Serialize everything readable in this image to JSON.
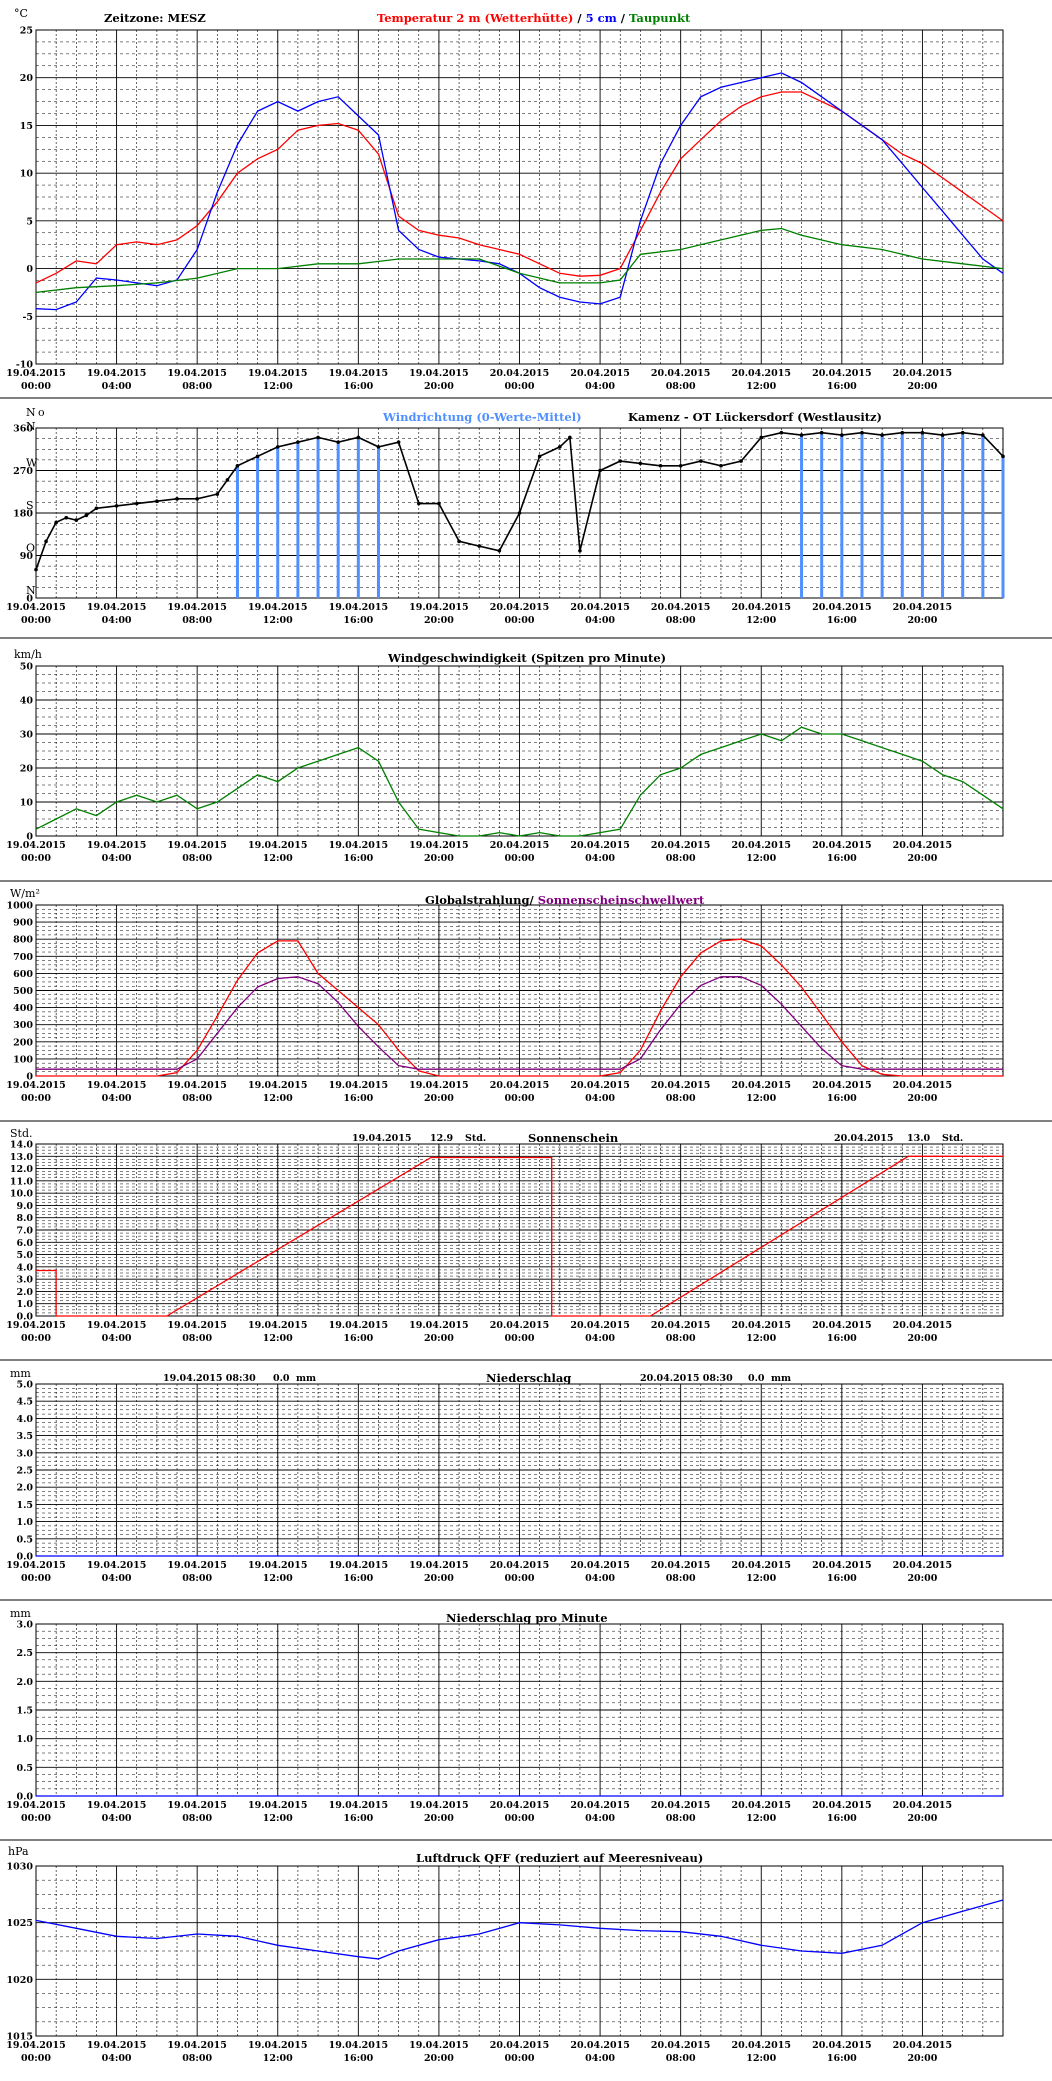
{
  "x_axis": {
    "labels": [
      [
        "19.04.2015",
        "00:00"
      ],
      [
        "19.04.2015",
        "04:00"
      ],
      [
        "19.04.2015",
        "08:00"
      ],
      [
        "19.04.2015",
        "12:00"
      ],
      [
        "19.04.2015",
        "16:00"
      ],
      [
        "19.04.2015",
        "20:00"
      ],
      [
        "20.04.2015",
        "00:00"
      ],
      [
        "20.04.2015",
        "04:00"
      ],
      [
        "20.04.2015",
        "08:00"
      ],
      [
        "20.04.2015",
        "12:00"
      ],
      [
        "20.04.2015",
        "16:00"
      ],
      [
        "20.04.2015",
        "20:00"
      ]
    ],
    "range_hours": [
      0,
      48
    ]
  },
  "colors": {
    "red": "#ff0000",
    "blue": "#0000ff",
    "green": "#008000",
    "black": "#000000",
    "lightblue": "#4f8fff",
    "purple": "#800080",
    "grid": "#000000"
  },
  "chart_data": [
    {
      "type": "line",
      "unit": "°C",
      "header": {
        "timezone": "Zeitzone: MESZ",
        "t2m": "Temperatur 2 m (Wetterhütte)",
        "sep": " / ",
        "t5": "5 cm",
        "sep2": " / ",
        "dew": "Taupunkt"
      },
      "ylim": [
        -10,
        25
      ],
      "yticks": [
        25,
        20,
        15,
        10,
        5,
        0,
        -5,
        -10
      ],
      "series": [
        {
          "name": "Temperatur 2 m (Wetterhütte)",
          "color": "#ff0000",
          "x": [
            0,
            1,
            2,
            3,
            4,
            5,
            6,
            7,
            8,
            9,
            10,
            11,
            12,
            13,
            14,
            15,
            16,
            17,
            18,
            19,
            20,
            21,
            22,
            23,
            24,
            25,
            26,
            27,
            28,
            29,
            30,
            31,
            32,
            33,
            34,
            35,
            36,
            37,
            38,
            39,
            40,
            41,
            42,
            43,
            44,
            45,
            46,
            47,
            48
          ],
          "y": [
            -1.5,
            -0.5,
            0.8,
            0.5,
            2.5,
            2.8,
            2.5,
            3.0,
            4.5,
            7.0,
            10.0,
            11.5,
            12.5,
            14.5,
            15.0,
            15.2,
            14.5,
            12.0,
            5.5,
            4.0,
            3.5,
            3.2,
            2.5,
            2.0,
            1.5,
            0.5,
            -0.5,
            -0.8,
            -0.7,
            0,
            4.0,
            8.0,
            11.5,
            13.5,
            15.5,
            17.0,
            18.0,
            18.5,
            18.5,
            17.5,
            16.5,
            15.0,
            13.5,
            12.0,
            11.0,
            9.5,
            8.0,
            6.5,
            5.0
          ]
        },
        {
          "name": "5 cm",
          "color": "#0000ff",
          "x": [
            0,
            1,
            2,
            3,
            4,
            5,
            6,
            7,
            8,
            9,
            10,
            11,
            12,
            13,
            14,
            15,
            16,
            17,
            18,
            19,
            20,
            21,
            22,
            23,
            24,
            25,
            26,
            27,
            28,
            29,
            30,
            31,
            32,
            33,
            34,
            35,
            36,
            37,
            38,
            39,
            40,
            41,
            42,
            43,
            44,
            45,
            46,
            47,
            48
          ],
          "y": [
            -4.2,
            -4.3,
            -3.5,
            -1.0,
            -1.2,
            -1.5,
            -1.8,
            -1.2,
            2.0,
            8.0,
            13.0,
            16.5,
            17.5,
            16.5,
            17.5,
            18.0,
            16.0,
            14.0,
            4.0,
            2.0,
            1.2,
            1.0,
            0.8,
            0.5,
            -0.5,
            -2.0,
            -3.0,
            -3.5,
            -3.7,
            -3.0,
            5.0,
            11.0,
            15.0,
            18.0,
            19.0,
            19.5,
            20.0,
            20.5,
            19.5,
            18.0,
            16.5,
            15.0,
            13.5,
            11.0,
            8.5,
            6.0,
            3.5,
            1.0,
            -0.5
          ]
        },
        {
          "name": "Taupunkt",
          "color": "#008000",
          "x": [
            0,
            2,
            4,
            6,
            8,
            10,
            12,
            14,
            16,
            18,
            20,
            22,
            24,
            26,
            28,
            29,
            30,
            32,
            34,
            36,
            37,
            38,
            40,
            42,
            44,
            46,
            48
          ],
          "y": [
            -2.5,
            -2.0,
            -1.8,
            -1.5,
            -1.0,
            0.0,
            0.0,
            0.5,
            0.5,
            1.0,
            1.0,
            1.0,
            -0.5,
            -1.5,
            -1.5,
            -1.2,
            1.5,
            2.0,
            3.0,
            4.0,
            4.2,
            3.5,
            2.5,
            2.0,
            1.0,
            0.5,
            0.0
          ]
        }
      ]
    },
    {
      "type": "scatter",
      "header": {
        "title": "Windrichtung (0-Werte-Mittel)",
        "station": "Kamenz - OT Lückersdorf (Westlausitz)"
      },
      "unit_label": "N",
      "unit_deg": "o",
      "ylim": [
        0,
        360
      ],
      "yticks": [
        360,
        270,
        180,
        90,
        0
      ],
      "dir_labels": [
        "N",
        "W",
        "S",
        "O",
        "N"
      ],
      "series": [
        {
          "name": "Windrichtung (0-Werte-Mittel)",
          "color": "#000000",
          "x": [
            0,
            0.5,
            1,
            1.5,
            2,
            2.5,
            3,
            4,
            5,
            6,
            7,
            8,
            9,
            9.5,
            10,
            11,
            12,
            13,
            14,
            15,
            16,
            17,
            18,
            19,
            20,
            21,
            22,
            23,
            24,
            25,
            26,
            26.5,
            27,
            28,
            29,
            30,
            31,
            32,
            33,
            34,
            35,
            36,
            37,
            38,
            39,
            40,
            41,
            42,
            43,
            44,
            45,
            46,
            47,
            48
          ],
          "y": [
            60,
            120,
            160,
            170,
            165,
            175,
            190,
            195,
            200,
            205,
            210,
            210,
            220,
            250,
            280,
            300,
            320,
            330,
            340,
            330,
            340,
            320,
            330,
            200,
            200,
            120,
            110,
            100,
            180,
            300,
            320,
            340,
            100,
            270,
            290,
            285,
            280,
            280,
            290,
            280,
            290,
            340,
            350,
            345,
            350,
            345,
            350,
            345,
            350,
            350,
            345,
            350,
            345,
            300
          ]
        }
      ]
    },
    {
      "type": "line",
      "unit": "km/h",
      "header": {
        "title": "Windgeschwindigkeit (Spitzen pro Minute)"
      },
      "ylim": [
        0,
        50
      ],
      "yticks": [
        50,
        40,
        30,
        20,
        10,
        0
      ],
      "series": [
        {
          "name": "Windgeschwindigkeit (Spitzen pro Minute)",
          "color": "#008000",
          "x": [
            0,
            1,
            2,
            3,
            4,
            5,
            6,
            7,
            8,
            9,
            10,
            11,
            12,
            13,
            14,
            15,
            16,
            17,
            18,
            19,
            20,
            21,
            22,
            23,
            24,
            25,
            26,
            27,
            28,
            29,
            30,
            31,
            32,
            33,
            34,
            35,
            36,
            37,
            38,
            39,
            40,
            41,
            42,
            43,
            44,
            45,
            46,
            47,
            48
          ],
          "y": [
            2,
            5,
            8,
            6,
            10,
            12,
            10,
            12,
            8,
            10,
            14,
            18,
            16,
            20,
            22,
            24,
            26,
            22,
            10,
            2,
            1,
            0,
            0,
            1,
            0,
            1,
            0,
            0,
            1,
            2,
            12,
            18,
            20,
            24,
            26,
            28,
            30,
            28,
            32,
            30,
            30,
            28,
            26,
            24,
            22,
            18,
            16,
            12,
            8
          ]
        }
      ]
    },
    {
      "type": "line",
      "unit": "W/m²",
      "header": {
        "title_a": "Globalstrahlung/ ",
        "title_b": "Sonnenscheinschwellwert"
      },
      "ylim": [
        0,
        1000
      ],
      "yticks": [
        1000,
        900,
        800,
        700,
        600,
        500,
        400,
        300,
        200,
        100,
        0
      ],
      "series": [
        {
          "name": "Globalstrahlung",
          "color": "#ff0000",
          "x": [
            0,
            6,
            7,
            8,
            9,
            10,
            11,
            12,
            13,
            14,
            15,
            16,
            17,
            18,
            19,
            20,
            24,
            28,
            29,
            30,
            31,
            32,
            33,
            34,
            35,
            36,
            37,
            38,
            39,
            40,
            41,
            42,
            43,
            44,
            48
          ],
          "y": [
            0,
            0,
            20,
            150,
            350,
            560,
            720,
            790,
            790,
            600,
            500,
            400,
            300,
            150,
            30,
            0,
            0,
            0,
            20,
            150,
            380,
            580,
            720,
            790,
            800,
            760,
            650,
            520,
            360,
            200,
            60,
            10,
            0,
            0,
            0
          ]
        },
        {
          "name": "Sonnenscheinschwellwert",
          "color": "#800080",
          "x": [
            0,
            6,
            7,
            8,
            9,
            10,
            11,
            12,
            13,
            14,
            15,
            16,
            17,
            18,
            19,
            20,
            28,
            29,
            30,
            31,
            32,
            33,
            34,
            35,
            36,
            37,
            38,
            39,
            40,
            41,
            42,
            48
          ],
          "y": [
            40,
            40,
            40,
            100,
            250,
            400,
            520,
            570,
            580,
            540,
            430,
            290,
            170,
            60,
            40,
            40,
            40,
            40,
            100,
            270,
            420,
            530,
            580,
            580,
            530,
            420,
            290,
            160,
            60,
            40,
            40,
            40
          ]
        }
      ]
    },
    {
      "type": "line",
      "unit": "Std.",
      "header": {
        "title": "Sonnenschein",
        "day1_date": "19.04.2015",
        "day1_value": "12.9",
        "day1_unit": "Std.",
        "day2_date": "20.04.2015",
        "day2_value": "13.0",
        "day2_unit": "Std."
      },
      "ylim": [
        0,
        14
      ],
      "yticks": [
        "14.0",
        "13.0",
        "12.0",
        "11.0",
        "10.0",
        "9.0",
        "8.0",
        "7.0",
        "6.0",
        "5.0",
        "4.0",
        "3.0",
        "2.0",
        "1.0",
        "0.0"
      ],
      "series": [
        {
          "name": "Sonnenschein",
          "color": "#ff0000",
          "x": [
            0,
            1,
            1,
            6.5,
            19.6,
            25.6,
            25.6,
            30.5,
            43.3,
            48
          ],
          "y": [
            3.7,
            3.7,
            0,
            0,
            12.9,
            12.9,
            0,
            0,
            13.0,
            13.0
          ]
        }
      ]
    },
    {
      "type": "line",
      "unit": "mm",
      "header": {
        "title": "Niederschlag",
        "day1_date": "19.04.2015 08:30",
        "day1_value": "0.0",
        "day1_unit": "mm",
        "day2_date": "20.04.2015 08:30",
        "day2_value": "0.0",
        "day2_unit": "mm"
      },
      "ylim": [
        0,
        5
      ],
      "yticks": [
        "5.0",
        "4.5",
        "4.0",
        "3.5",
        "3.0",
        "2.5",
        "2.0",
        "1.5",
        "1.0",
        "0.5",
        "0.0"
      ],
      "series": [
        {
          "name": "Niederschlag",
          "color": "#0000ff",
          "x": [
            0,
            48
          ],
          "y": [
            0,
            0
          ]
        }
      ]
    },
    {
      "type": "line",
      "unit": "mm",
      "header": {
        "title": "Niederschlag pro Minute"
      },
      "ylim": [
        0,
        3
      ],
      "yticks": [
        "3.0",
        "2.5",
        "2.0",
        "1.5",
        "1.0",
        "0.5",
        "0.0"
      ],
      "series": [
        {
          "name": "Niederschlag pro Minute",
          "color": "#0000ff",
          "x": [
            0,
            48
          ],
          "y": [
            0,
            0
          ]
        }
      ]
    },
    {
      "type": "line",
      "unit": "hPa",
      "header": {
        "title": "Luftdruck QFF (reduziert auf Meeresniveau)"
      },
      "ylim": [
        1015,
        1030
      ],
      "yticks": [
        1030,
        1025,
        1020,
        1015
      ],
      "series": [
        {
          "name": "Luftdruck QFF",
          "color": "#0000ff",
          "x": [
            0,
            2,
            4,
            6,
            8,
            10,
            12,
            14,
            16,
            17,
            18,
            20,
            22,
            24,
            26,
            28,
            30,
            32,
            34,
            36,
            38,
            40,
            42,
            44,
            46,
            48
          ],
          "y": [
            1025.2,
            1024.5,
            1023.8,
            1023.6,
            1024.0,
            1023.8,
            1023.0,
            1022.5,
            1022.0,
            1021.8,
            1022.5,
            1023.5,
            1024.0,
            1025.0,
            1024.8,
            1024.5,
            1024.3,
            1024.2,
            1023.8,
            1023.0,
            1022.5,
            1022.3,
            1023.0,
            1025.0,
            1026.0,
            1027.0
          ]
        }
      ]
    }
  ]
}
